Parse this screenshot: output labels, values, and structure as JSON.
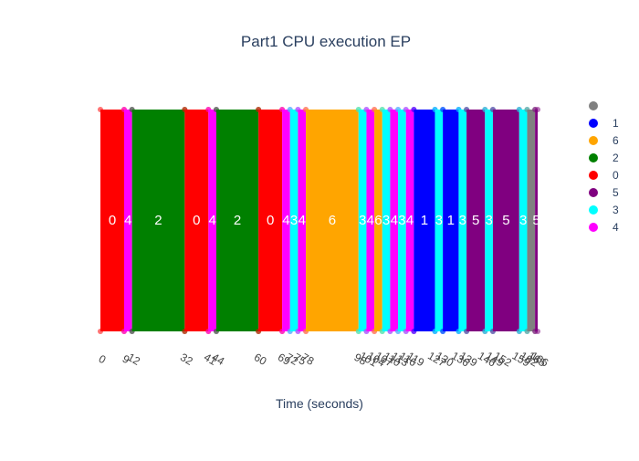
{
  "chart_data": {
    "type": "gantt",
    "title": "Part1 CPU execution EP",
    "xlabel": "Time (seconds)",
    "ylabel": "",
    "xlim": [
      0,
      166
    ],
    "grid": false,
    "legend_position": "right",
    "legend": [
      {
        "name": "",
        "color": "#808080"
      },
      {
        "name": "1",
        "color": "#0000ff"
      },
      {
        "name": "6",
        "color": "#ffa500"
      },
      {
        "name": "2",
        "color": "#008000"
      },
      {
        "name": "0",
        "color": "#ff0000"
      },
      {
        "name": "5",
        "color": "#800080"
      },
      {
        "name": "3",
        "color": "#00ffff"
      },
      {
        "name": "4",
        "color": "#ff00ff"
      }
    ],
    "segments": [
      {
        "label": "0",
        "start": 0,
        "end": 9
      },
      {
        "label": "4",
        "start": 9,
        "end": 12
      },
      {
        "label": "2",
        "start": 12,
        "end": 32
      },
      {
        "label": "0",
        "start": 32,
        "end": 41
      },
      {
        "label": "4",
        "start": 41,
        "end": 44
      },
      {
        "label": "2",
        "start": 44,
        "end": 60
      },
      {
        "label": "0",
        "start": 60,
        "end": 69
      },
      {
        "label": "4",
        "start": 69,
        "end": 72
      },
      {
        "label": "3",
        "start": 72,
        "end": 75
      },
      {
        "label": "4",
        "start": 75,
        "end": 78
      },
      {
        "label": "6",
        "start": 78,
        "end": 98
      },
      {
        "label": "3",
        "start": 98,
        "end": 101
      },
      {
        "label": "4",
        "start": 101,
        "end": 104
      },
      {
        "label": "6",
        "start": 104,
        "end": 107
      },
      {
        "label": "3",
        "start": 107,
        "end": 110
      },
      {
        "label": "4",
        "start": 110,
        "end": 113
      },
      {
        "label": "3",
        "start": 113,
        "end": 116
      },
      {
        "label": "4",
        "start": 116,
        "end": 119
      },
      {
        "label": "1",
        "start": 119,
        "end": 127
      },
      {
        "label": "3",
        "start": 127,
        "end": 130
      },
      {
        "label": "1",
        "start": 130,
        "end": 136
      },
      {
        "label": "3",
        "start": 136,
        "end": 139
      },
      {
        "label": "5",
        "start": 139,
        "end": 146
      },
      {
        "label": "3",
        "start": 146,
        "end": 149
      },
      {
        "label": "5",
        "start": 149,
        "end": 159
      },
      {
        "label": "3",
        "start": 159,
        "end": 162
      },
      {
        "label": "",
        "start": 162,
        "end": 165
      },
      {
        "label": "5",
        "start": 165,
        "end": 166
      }
    ],
    "tick_labels": [
      "0",
      "9",
      "12",
      "32",
      "41",
      "44",
      "60",
      "69",
      "72",
      "75",
      "78",
      "98",
      "101",
      "104",
      "107",
      "110",
      "113",
      "116",
      "119",
      "127",
      "130",
      "136",
      "139",
      "146",
      "149",
      "152",
      "159",
      "162",
      "165",
      "166"
    ]
  }
}
